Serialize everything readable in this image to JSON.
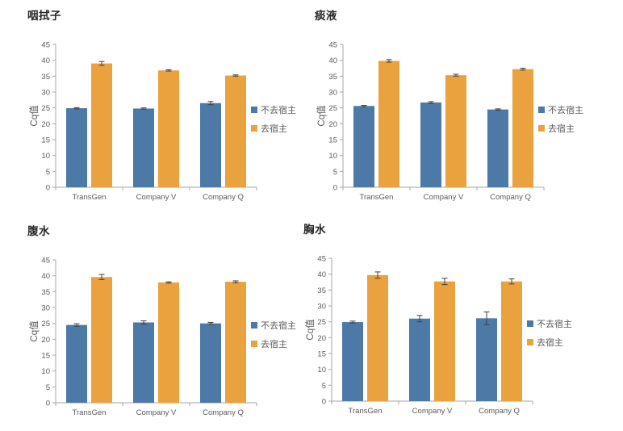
{
  "page": {
    "background": "#ffffff"
  },
  "colors": {
    "series_blue": "#4D79A6",
    "series_orange": "#E9A23E",
    "axis": "#A6A6A6",
    "tick_text": "#595959",
    "error_bar": "#404040",
    "title_text": "#262626"
  },
  "chart_data": [
    {
      "type": "bar",
      "title": "咽拭子",
      "ylabel": "Cq值",
      "ylim": [
        0,
        45
      ],
      "ytick_step": 5,
      "grid": false,
      "legend_position": "right",
      "categories": [
        "TransGen",
        "Company V",
        "Company Q"
      ],
      "series": [
        {
          "name": "不去宿主",
          "color": "#4D79A6",
          "values": [
            24.9,
            24.8,
            26.5
          ],
          "errors": [
            0.2,
            0.2,
            0.5
          ]
        },
        {
          "name": "去宿主",
          "color": "#E9A23E",
          "values": [
            39.0,
            36.8,
            35.2
          ],
          "errors": [
            0.6,
            0.2,
            0.2
          ]
        }
      ]
    },
    {
      "type": "bar",
      "title": "痰液",
      "ylabel": "Cq值",
      "ylim": [
        0,
        45
      ],
      "ytick_step": 5,
      "grid": false,
      "legend_position": "right",
      "categories": [
        "TransGen",
        "Company V",
        "Company Q"
      ],
      "series": [
        {
          "name": "不去宿主",
          "color": "#4D79A6",
          "values": [
            25.6,
            26.7,
            24.5
          ],
          "errors": [
            0.2,
            0.3,
            0.2
          ]
        },
        {
          "name": "去宿主",
          "color": "#E9A23E",
          "values": [
            39.8,
            35.3,
            37.2
          ],
          "errors": [
            0.4,
            0.3,
            0.3
          ]
        }
      ]
    },
    {
      "type": "bar",
      "title": "腹水",
      "ylabel": "Cq值",
      "ylim": [
        0,
        45
      ],
      "ytick_step": 5,
      "grid": false,
      "legend_position": "right",
      "categories": [
        "TransGen",
        "Company V",
        "Company Q"
      ],
      "series": [
        {
          "name": "不去宿主",
          "color": "#4D79A6",
          "values": [
            24.5,
            25.3,
            25.0
          ],
          "errors": [
            0.4,
            0.5,
            0.3
          ]
        },
        {
          "name": "去宿主",
          "color": "#E9A23E",
          "values": [
            39.6,
            37.9,
            38.1
          ],
          "errors": [
            0.8,
            0.2,
            0.3
          ]
        }
      ]
    },
    {
      "type": "bar",
      "title": "胸水",
      "ylabel": "Cq值",
      "ylim": [
        0,
        45
      ],
      "ytick_step": 5,
      "grid": false,
      "legend_position": "right",
      "categories": [
        "TransGen",
        "Company V",
        "Company Q"
      ],
      "series": [
        {
          "name": "不去宿主",
          "color": "#4D79A6",
          "values": [
            24.9,
            26.0,
            26.1
          ],
          "errors": [
            0.3,
            1.0,
            2.0
          ]
        },
        {
          "name": "去宿主",
          "color": "#E9A23E",
          "values": [
            39.7,
            37.7,
            37.7
          ],
          "errors": [
            1.0,
            1.0,
            0.8
          ]
        }
      ]
    }
  ]
}
